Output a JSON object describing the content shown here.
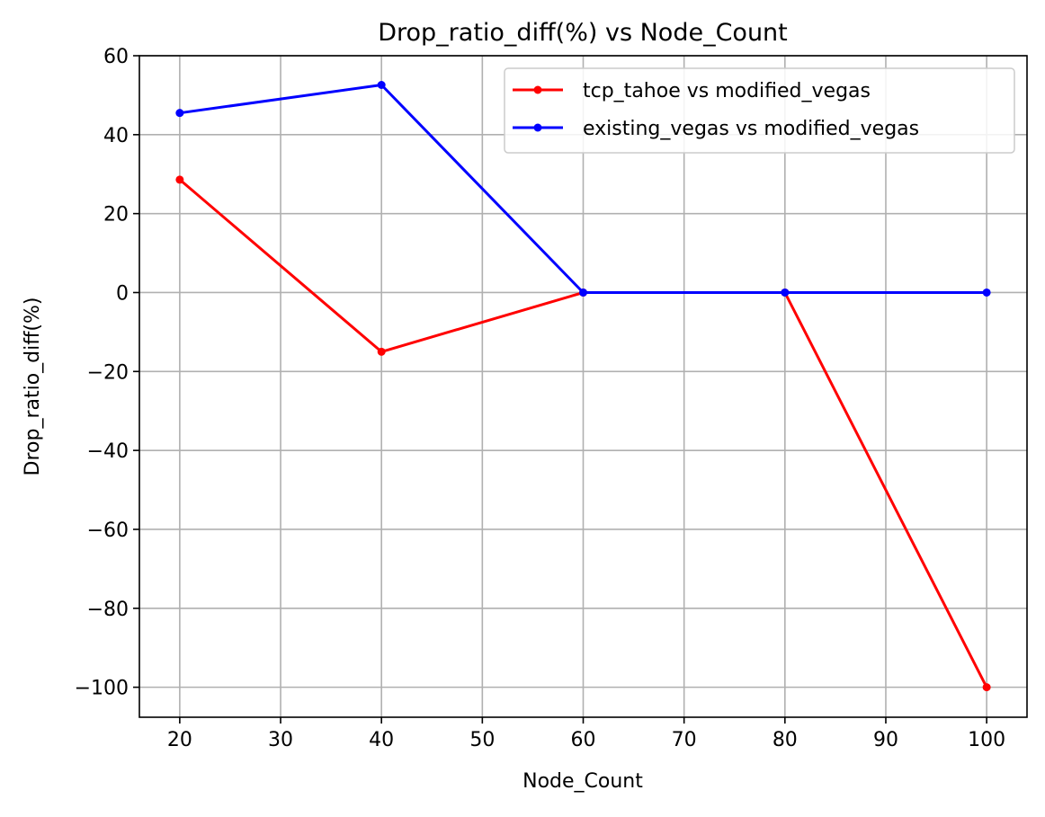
{
  "chart_data": {
    "type": "line",
    "title": "Drop_ratio_diff(%) vs Node_Count",
    "xlabel": "Node_Count",
    "ylabel": "Drop_ratio_diff(%)",
    "x": [
      20,
      40,
      60,
      80,
      100
    ],
    "series": [
      {
        "name": "tcp_tahoe vs modified_vegas",
        "color": "#ff0000",
        "values": [
          28.6,
          -15.0,
          0,
          0,
          -100
        ]
      },
      {
        "name": "existing_vegas vs modified_vegas",
        "color": "#0000ff",
        "values": [
          45.5,
          52.6,
          0,
          0,
          0
        ]
      }
    ],
    "xlim": [
      16,
      104
    ],
    "ylim": [
      -107.6,
      60
    ],
    "xticks": [
      20,
      30,
      40,
      50,
      60,
      70,
      80,
      90,
      100
    ],
    "xtick_labels": [
      "20",
      "30",
      "40",
      "50",
      "60",
      "70",
      "80",
      "90",
      "100"
    ],
    "yticks": [
      -100,
      -80,
      -60,
      -40,
      -20,
      0,
      20,
      40,
      60
    ],
    "ytick_labels": [
      "−100",
      "−80",
      "−60",
      "−40",
      "−20",
      "0",
      "20",
      "40",
      "60"
    ],
    "grid": true,
    "legend_position": "top-right",
    "marker": "dot"
  }
}
